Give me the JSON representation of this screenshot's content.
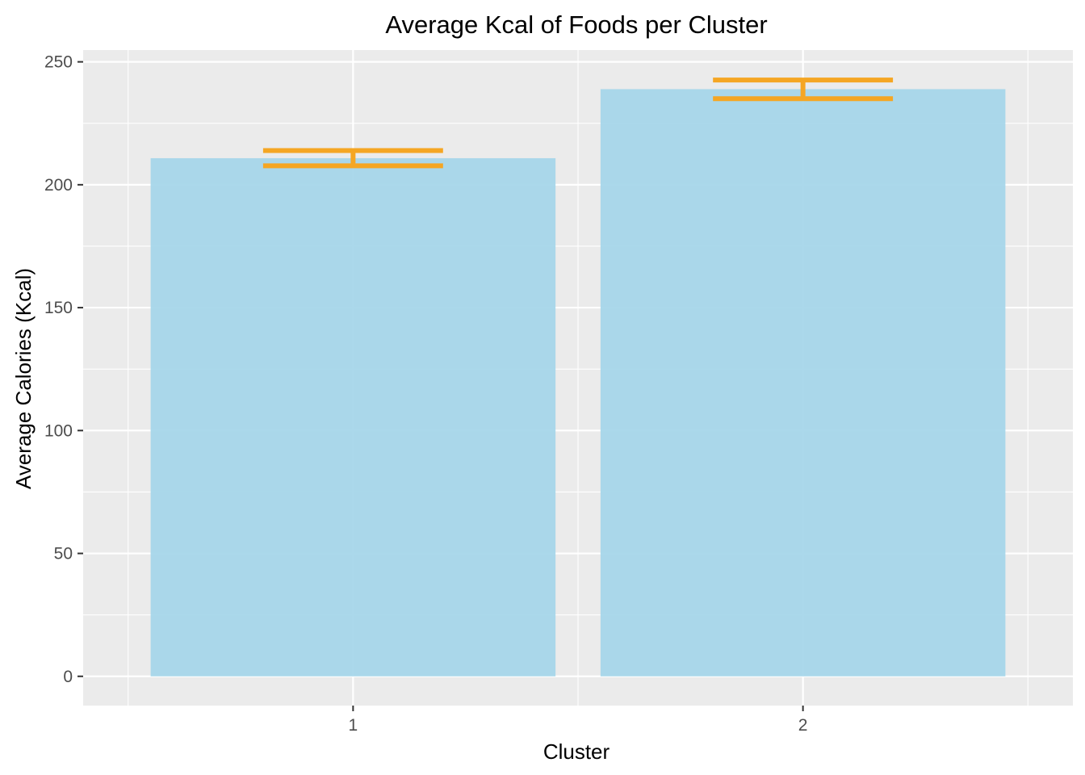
{
  "chart_data": {
    "type": "bar",
    "title": "Average Kcal of Foods per Cluster",
    "xlabel": "Cluster",
    "ylabel": "Average Calories (Kcal)",
    "categories": [
      "1",
      "2"
    ],
    "values": [
      210.8,
      238.9
    ],
    "error_bars": [
      {
        "category": "1",
        "low": 207.7,
        "high": 213.9
      },
      {
        "category": "2",
        "low": 235.0,
        "high": 242.6
      }
    ],
    "ylim": [
      -11.9,
      254.8
    ],
    "yticks": [
      "0",
      "50",
      "100",
      "150",
      "200",
      "250"
    ],
    "grid": true,
    "legend": "none",
    "colors": {
      "bar": "#a6d6ea",
      "error_bar": "#f5a623",
      "panel": "#ebebeb",
      "grid": "#ffffff",
      "tick": "#333333"
    }
  }
}
